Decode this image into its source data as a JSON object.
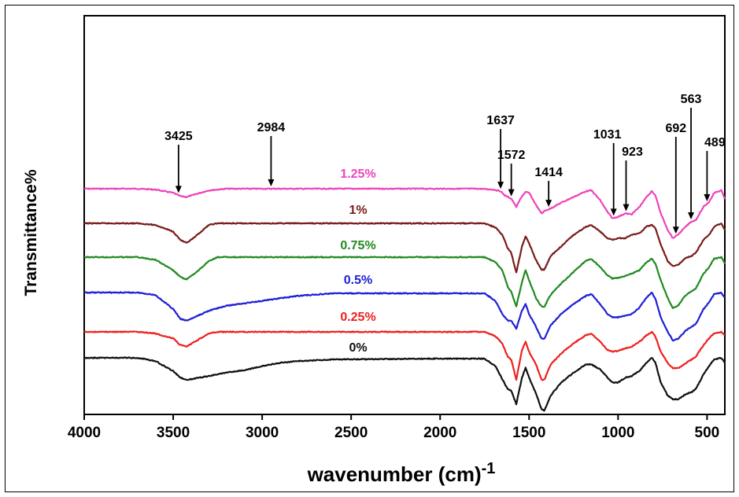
{
  "chart_data": {
    "type": "line",
    "xlabel": "wavenumber (cm)",
    "xlabel_superscript": "-1",
    "ylabel": "Transmittance%",
    "xlim": [
      4000,
      400
    ],
    "x_reversed": true,
    "xticks": [
      4000,
      3500,
      3000,
      2500,
      2000,
      1500,
      1000,
      500
    ],
    "xtick_labels": [
      "4000",
      "3500",
      "3000",
      "2500",
      "2000",
      "1500",
      "1000",
      "500"
    ],
    "y_ticks_shown": false,
    "grid": false,
    "legend": "none",
    "series": [
      {
        "name": "1.25%",
        "color": "#ee44bb",
        "points": [
          [
            4000,
            0
          ],
          [
            3700,
            0
          ],
          [
            3600,
            -1
          ],
          [
            3500,
            -5
          ],
          [
            3460,
            -9
          ],
          [
            3425,
            -10
          ],
          [
            3380,
            -7
          ],
          [
            3300,
            -2
          ],
          [
            3200,
            0
          ],
          [
            2700,
            0
          ],
          [
            2000,
            0
          ],
          [
            1780,
            0
          ],
          [
            1700,
            -1
          ],
          [
            1660,
            -3
          ],
          [
            1637,
            -8
          ],
          [
            1600,
            -12
          ],
          [
            1572,
            -22
          ],
          [
            1540,
            -9
          ],
          [
            1520,
            -4
          ],
          [
            1500,
            -5
          ],
          [
            1460,
            -20
          ],
          [
            1430,
            -30
          ],
          [
            1414,
            -27
          ],
          [
            1380,
            -24
          ],
          [
            1320,
            -17
          ],
          [
            1250,
            -10
          ],
          [
            1180,
            -3
          ],
          [
            1150,
            -2
          ],
          [
            1100,
            -14
          ],
          [
            1060,
            -28
          ],
          [
            1031,
            -36
          ],
          [
            1000,
            -34
          ],
          [
            960,
            -30
          ],
          [
            923,
            -31
          ],
          [
            880,
            -22
          ],
          [
            840,
            -10
          ],
          [
            810,
            -3
          ],
          [
            790,
            -8
          ],
          [
            760,
            -30
          ],
          [
            720,
            -50
          ],
          [
            692,
            -60
          ],
          [
            660,
            -55
          ],
          [
            620,
            -46
          ],
          [
            590,
            -40
          ],
          [
            563,
            -38
          ],
          [
            520,
            -22
          ],
          [
            489,
            -16
          ],
          [
            460,
            -5
          ],
          [
            420,
            -2
          ],
          [
            400,
            -12
          ]
        ]
      },
      {
        "name": "1%",
        "color": "#7a1c1c",
        "points": [
          [
            4000,
            0
          ],
          [
            3700,
            0
          ],
          [
            3600,
            -2
          ],
          [
            3500,
            -10
          ],
          [
            3460,
            -20
          ],
          [
            3425,
            -24
          ],
          [
            3380,
            -17
          ],
          [
            3300,
            -2
          ],
          [
            3250,
            0
          ],
          [
            2700,
            0
          ],
          [
            2000,
            0
          ],
          [
            1750,
            0
          ],
          [
            1690,
            -5
          ],
          [
            1650,
            -14
          ],
          [
            1620,
            -30
          ],
          [
            1600,
            -36
          ],
          [
            1572,
            -60
          ],
          [
            1540,
            -28
          ],
          [
            1520,
            -16
          ],
          [
            1500,
            -24
          ],
          [
            1460,
            -45
          ],
          [
            1430,
            -56
          ],
          [
            1414,
            -56
          ],
          [
            1380,
            -40
          ],
          [
            1320,
            -28
          ],
          [
            1250,
            -14
          ],
          [
            1180,
            -4
          ],
          [
            1150,
            -2
          ],
          [
            1100,
            -10
          ],
          [
            1060,
            -18
          ],
          [
            1031,
            -20
          ],
          [
            1000,
            -18
          ],
          [
            960,
            -18
          ],
          [
            923,
            -14
          ],
          [
            880,
            -12
          ],
          [
            840,
            -4
          ],
          [
            810,
            -2
          ],
          [
            790,
            -6
          ],
          [
            760,
            -26
          ],
          [
            720,
            -46
          ],
          [
            692,
            -52
          ],
          [
            660,
            -50
          ],
          [
            620,
            -42
          ],
          [
            590,
            -40
          ],
          [
            563,
            -36
          ],
          [
            520,
            -20
          ],
          [
            489,
            -14
          ],
          [
            460,
            -4
          ],
          [
            420,
            0
          ],
          [
            400,
            -8
          ]
        ]
      },
      {
        "name": "0.75%",
        "color": "#218a21",
        "points": [
          [
            4000,
            0
          ],
          [
            3700,
            0
          ],
          [
            3600,
            -3
          ],
          [
            3500,
            -16
          ],
          [
            3460,
            -24
          ],
          [
            3425,
            -27
          ],
          [
            3380,
            -20
          ],
          [
            3300,
            -5
          ],
          [
            3250,
            0
          ],
          [
            2700,
            0
          ],
          [
            2000,
            0
          ],
          [
            1750,
            0
          ],
          [
            1690,
            -6
          ],
          [
            1650,
            -16
          ],
          [
            1620,
            -36
          ],
          [
            1600,
            -42
          ],
          [
            1572,
            -60
          ],
          [
            1540,
            -30
          ],
          [
            1520,
            -16
          ],
          [
            1500,
            -28
          ],
          [
            1460,
            -50
          ],
          [
            1430,
            -60
          ],
          [
            1414,
            -60
          ],
          [
            1380,
            -46
          ],
          [
            1320,
            -32
          ],
          [
            1250,
            -18
          ],
          [
            1180,
            -4
          ],
          [
            1150,
            -2
          ],
          [
            1100,
            -12
          ],
          [
            1060,
            -22
          ],
          [
            1031,
            -26
          ],
          [
            1000,
            -25
          ],
          [
            960,
            -23
          ],
          [
            923,
            -20
          ],
          [
            880,
            -16
          ],
          [
            840,
            -6
          ],
          [
            810,
            -2
          ],
          [
            790,
            -8
          ],
          [
            760,
            -28
          ],
          [
            720,
            -50
          ],
          [
            692,
            -62
          ],
          [
            660,
            -58
          ],
          [
            620,
            -46
          ],
          [
            590,
            -42
          ],
          [
            563,
            -38
          ],
          [
            520,
            -20
          ],
          [
            489,
            -12
          ],
          [
            460,
            -2
          ],
          [
            420,
            0
          ],
          [
            400,
            -8
          ]
        ]
      },
      {
        "name": "0.5%",
        "color": "#1f1fd6",
        "points": [
          [
            4000,
            0
          ],
          [
            3700,
            0
          ],
          [
            3600,
            -3
          ],
          [
            3500,
            -20
          ],
          [
            3460,
            -32
          ],
          [
            3425,
            -34
          ],
          [
            3380,
            -30
          ],
          [
            3300,
            -22
          ],
          [
            3200,
            -16
          ],
          [
            3000,
            -10
          ],
          [
            2800,
            -4
          ],
          [
            2600,
            -1
          ],
          [
            2000,
            -1
          ],
          [
            1750,
            -1
          ],
          [
            1690,
            -10
          ],
          [
            1650,
            -26
          ],
          [
            1620,
            -34
          ],
          [
            1600,
            -34
          ],
          [
            1572,
            -44
          ],
          [
            1540,
            -22
          ],
          [
            1520,
            -14
          ],
          [
            1500,
            -26
          ],
          [
            1460,
            -42
          ],
          [
            1430,
            -56
          ],
          [
            1414,
            -56
          ],
          [
            1380,
            -40
          ],
          [
            1320,
            -26
          ],
          [
            1250,
            -14
          ],
          [
            1180,
            -4
          ],
          [
            1150,
            -2
          ],
          [
            1100,
            -14
          ],
          [
            1060,
            -26
          ],
          [
            1031,
            -30
          ],
          [
            1000,
            -30
          ],
          [
            960,
            -28
          ],
          [
            923,
            -26
          ],
          [
            880,
            -18
          ],
          [
            840,
            -6
          ],
          [
            810,
            0
          ],
          [
            790,
            -8
          ],
          [
            760,
            -30
          ],
          [
            720,
            -48
          ],
          [
            692,
            -58
          ],
          [
            660,
            -56
          ],
          [
            620,
            -46
          ],
          [
            590,
            -42
          ],
          [
            563,
            -38
          ],
          [
            520,
            -20
          ],
          [
            489,
            -12
          ],
          [
            460,
            -2
          ],
          [
            420,
            0
          ],
          [
            400,
            -6
          ]
        ]
      },
      {
        "name": "0.25%",
        "color": "#ee2020",
        "points": [
          [
            4000,
            0
          ],
          [
            3700,
            0
          ],
          [
            3600,
            -2
          ],
          [
            3500,
            -8
          ],
          [
            3460,
            -16
          ],
          [
            3425,
            -18
          ],
          [
            3380,
            -12
          ],
          [
            3300,
            -2
          ],
          [
            3250,
            0
          ],
          [
            2700,
            0
          ],
          [
            2000,
            0
          ],
          [
            1750,
            0
          ],
          [
            1690,
            -5
          ],
          [
            1650,
            -14
          ],
          [
            1620,
            -30
          ],
          [
            1600,
            -34
          ],
          [
            1572,
            -58
          ],
          [
            1540,
            -22
          ],
          [
            1520,
            -12
          ],
          [
            1500,
            -24
          ],
          [
            1460,
            -40
          ],
          [
            1430,
            -58
          ],
          [
            1414,
            -58
          ],
          [
            1380,
            -40
          ],
          [
            1320,
            -26
          ],
          [
            1250,
            -14
          ],
          [
            1180,
            -4
          ],
          [
            1150,
            -2
          ],
          [
            1100,
            -12
          ],
          [
            1060,
            -22
          ],
          [
            1031,
            -24
          ],
          [
            1000,
            -23
          ],
          [
            960,
            -20
          ],
          [
            923,
            -18
          ],
          [
            880,
            -12
          ],
          [
            840,
            -4
          ],
          [
            810,
            0
          ],
          [
            790,
            -6
          ],
          [
            760,
            -24
          ],
          [
            720,
            -38
          ],
          [
            692,
            -44
          ],
          [
            660,
            -44
          ],
          [
            620,
            -38
          ],
          [
            590,
            -34
          ],
          [
            563,
            -30
          ],
          [
            520,
            -16
          ],
          [
            489,
            -8
          ],
          [
            460,
            -2
          ],
          [
            420,
            0
          ],
          [
            400,
            -4
          ]
        ]
      },
      {
        "name": "0%",
        "color": "#111111",
        "points": [
          [
            4000,
            0
          ],
          [
            3700,
            0
          ],
          [
            3600,
            -4
          ],
          [
            3500,
            -16
          ],
          [
            3460,
            -24
          ],
          [
            3425,
            -27
          ],
          [
            3380,
            -25
          ],
          [
            3300,
            -22
          ],
          [
            3200,
            -18
          ],
          [
            3100,
            -15
          ],
          [
            3000,
            -10
          ],
          [
            2900,
            -6
          ],
          [
            2800,
            -4
          ],
          [
            2600,
            -2
          ],
          [
            2000,
            -1
          ],
          [
            1750,
            -1
          ],
          [
            1690,
            -10
          ],
          [
            1650,
            -26
          ],
          [
            1620,
            -38
          ],
          [
            1600,
            -40
          ],
          [
            1572,
            -56
          ],
          [
            1540,
            -24
          ],
          [
            1520,
            -12
          ],
          [
            1500,
            -24
          ],
          [
            1460,
            -44
          ],
          [
            1430,
            -62
          ],
          [
            1414,
            -64
          ],
          [
            1380,
            -46
          ],
          [
            1320,
            -30
          ],
          [
            1250,
            -18
          ],
          [
            1180,
            -8
          ],
          [
            1150,
            -8
          ],
          [
            1100,
            -14
          ],
          [
            1060,
            -24
          ],
          [
            1031,
            -30
          ],
          [
            1000,
            -30
          ],
          [
            960,
            -24
          ],
          [
            923,
            -22
          ],
          [
            880,
            -16
          ],
          [
            840,
            -6
          ],
          [
            810,
            0
          ],
          [
            790,
            -6
          ],
          [
            760,
            -30
          ],
          [
            720,
            -46
          ],
          [
            692,
            -50
          ],
          [
            660,
            -50
          ],
          [
            620,
            -44
          ],
          [
            590,
            -42
          ],
          [
            563,
            -38
          ],
          [
            520,
            -20
          ],
          [
            489,
            -10
          ],
          [
            460,
            -2
          ],
          [
            420,
            0
          ],
          [
            400,
            -6
          ]
        ]
      }
    ],
    "peak_annotations": [
      {
        "label": "3425",
        "x": 3470,
        "series": "1.25%"
      },
      {
        "label": "2984",
        "x": 2950,
        "series": "1.25%"
      },
      {
        "label": "1637",
        "x": 1660,
        "series": "1.25%"
      },
      {
        "label": "1572",
        "x": 1600,
        "series": "1.25%"
      },
      {
        "label": "1414",
        "x": 1390,
        "series": "1.25%"
      },
      {
        "label": "1031",
        "x": 1025,
        "series": "1.25%"
      },
      {
        "label": "923",
        "x": 955,
        "series": "1.25%"
      },
      {
        "label": "692",
        "x": 675,
        "series": "1.25%"
      },
      {
        "label": "563",
        "x": 590,
        "series": "1.25%"
      },
      {
        "label": "489",
        "x": 500,
        "series": "1.25%"
      }
    ]
  }
}
